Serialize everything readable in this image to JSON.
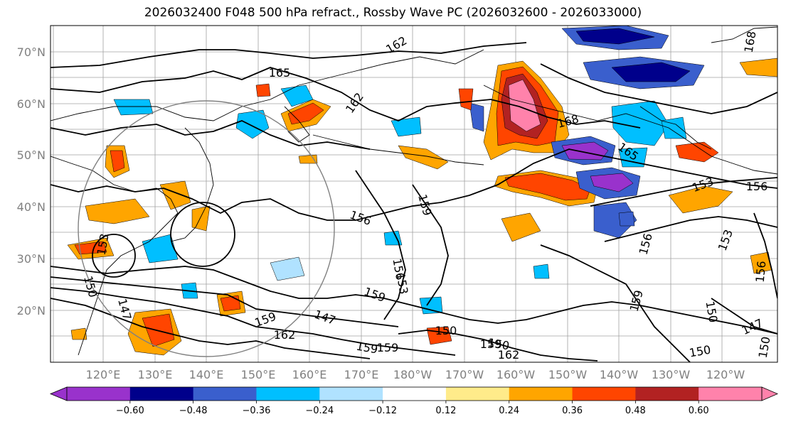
{
  "title": "2026032400 F048 500 hPa refract., Rossby Wave PC (2026032600 - 2026033000)",
  "map": {
    "lat_labels": [
      "70°N",
      "60°N",
      "50°N",
      "40°N",
      "30°N",
      "20°N"
    ],
    "lon_labels": [
      "120°E",
      "130°E",
      "140°E",
      "150°E",
      "160°E",
      "170°E",
      "180°W",
      "170°W",
      "160°W",
      "150°W",
      "140°W",
      "130°W",
      "120°W"
    ],
    "contour_labels": [
      "165",
      "162",
      "162",
      "168",
      "168",
      "165",
      "156",
      "159",
      "156",
      "159",
      "153",
      "159",
      "156",
      "153",
      "150",
      "162",
      "159",
      "147",
      "150",
      "156",
      "153",
      "150",
      "147",
      "150",
      "150",
      "156",
      "153",
      "159",
      "162",
      "159",
      "147",
      "150",
      "159"
    ]
  },
  "colorbar": {
    "colors": [
      "#9932cc",
      "#00008b",
      "#3a5fcd",
      "#00bfff",
      "#b0e2ff",
      "#ffffff",
      "#ffeb8a",
      "#ffa500",
      "#ff4500",
      "#b22222",
      "#ff82ab"
    ],
    "tick_labels": [
      "−0.60",
      "−0.48",
      "−0.36",
      "−0.24",
      "−0.12",
      "0.12",
      "0.24",
      "0.36",
      "0.48",
      "0.60"
    ]
  }
}
